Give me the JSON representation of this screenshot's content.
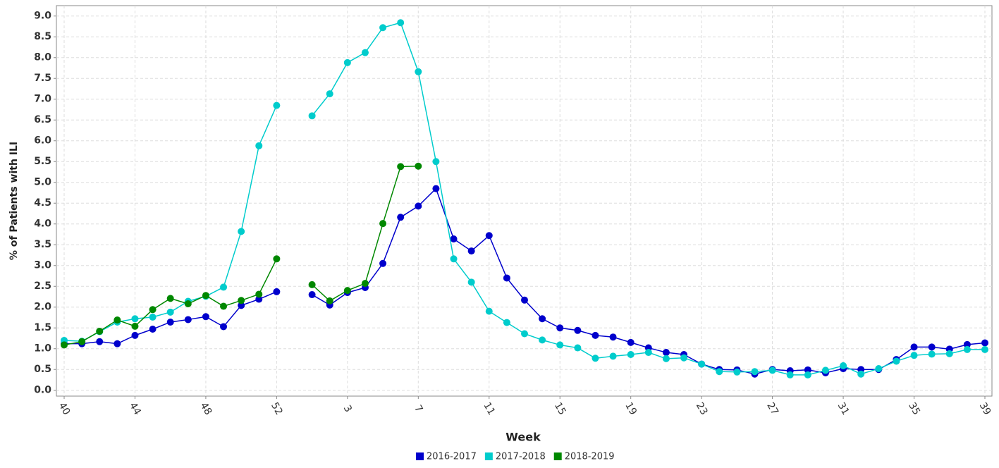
{
  "chart_data": {
    "type": "line",
    "x_label": "Week",
    "y_label": "% of Patients with ILI",
    "categories": [
      "40",
      null,
      null,
      null,
      "44",
      null,
      null,
      null,
      "48",
      null,
      null,
      null,
      "52",
      null,
      null,
      null,
      "3",
      null,
      null,
      null,
      "7",
      null,
      null,
      null,
      "11",
      null,
      null,
      null,
      "15",
      null,
      null,
      null,
      "19",
      null,
      null,
      null,
      "23",
      null,
      null,
      null,
      "27",
      null,
      null,
      null,
      "31",
      null,
      null,
      null,
      "35",
      null,
      null,
      null,
      "39"
    ],
    "series": [
      {
        "name": "2016-2017",
        "color": "#0000cc",
        "values": [
          1.12,
          1.12,
          1.17,
          1.12,
          1.32,
          1.47,
          1.64,
          1.7,
          1.77,
          1.53,
          2.04,
          2.19,
          2.37,
          null,
          2.3,
          2.05,
          2.35,
          2.47,
          3.05,
          4.16,
          4.43,
          4.85,
          3.64,
          3.35,
          3.72,
          2.7,
          2.17,
          1.72,
          1.5,
          1.44,
          1.32,
          1.28,
          1.15,
          1.02,
          0.91,
          0.86,
          0.63,
          0.5,
          0.49,
          0.39,
          0.5,
          0.47,
          0.49,
          0.42,
          0.52,
          0.5,
          0.5,
          0.74,
          1.04,
          1.04,
          0.99,
          1.1,
          1.14
        ]
      },
      {
        "name": "2017-2018",
        "color": "#00cccc",
        "values": [
          1.2,
          1.18,
          1.41,
          1.64,
          1.72,
          1.76,
          1.88,
          2.14,
          2.26,
          2.48,
          3.82,
          5.88,
          6.85,
          null,
          6.6,
          7.13,
          7.88,
          8.12,
          8.72,
          8.84,
          7.66,
          5.5,
          3.16,
          2.6,
          1.9,
          1.63,
          1.36,
          1.21,
          1.09,
          1.02,
          0.77,
          0.82,
          0.86,
          0.91,
          0.76,
          0.78,
          0.63,
          0.45,
          0.44,
          0.45,
          0.48,
          0.37,
          0.37,
          0.48,
          0.59,
          0.39,
          0.52,
          0.7,
          0.84,
          0.87,
          0.88,
          0.98,
          0.98
        ]
      },
      {
        "name": "2018-2019",
        "color": "#008800",
        "values": [
          1.09,
          1.17,
          1.42,
          1.69,
          1.54,
          1.94,
          2.21,
          2.08,
          2.28,
          2.02,
          2.16,
          2.31,
          3.16,
          null,
          2.54,
          2.15,
          2.4,
          2.57,
          4.01,
          5.38,
          5.39,
          null,
          null,
          null,
          null,
          null,
          null,
          null,
          null,
          null,
          null,
          null,
          null,
          null,
          null,
          null,
          null,
          null,
          null,
          null,
          null,
          null,
          null,
          null,
          null,
          null,
          null,
          null,
          null,
          null,
          null,
          null,
          null
        ]
      }
    ],
    "ylim": [
      -0.14,
      9.25
    ],
    "yticks": [
      {
        "value": 0,
        "label": "0.0"
      },
      {
        "value": 0.5,
        "label": "0.5"
      },
      {
        "value": 1,
        "label": "1.0"
      },
      {
        "value": 1.5,
        "label": "1.5"
      },
      {
        "value": 2,
        "label": "2.0"
      },
      {
        "value": 2.5,
        "label": "2.5"
      },
      {
        "value": 3,
        "label": "3.0"
      },
      {
        "value": 3.5,
        "label": "3.5"
      },
      {
        "value": 4,
        "label": "4.0"
      },
      {
        "value": 4.5,
        "label": "4.5"
      },
      {
        "value": 5,
        "label": "5.0"
      },
      {
        "value": 5.5,
        "label": "5.5"
      },
      {
        "value": 6,
        "label": "6.0"
      },
      {
        "value": 6.5,
        "label": "6.5"
      },
      {
        "value": 7,
        "label": "7.0"
      },
      {
        "value": 7.5,
        "label": "7.5"
      },
      {
        "value": 8,
        "label": "8.0"
      },
      {
        "value": 8.5,
        "label": "8.5"
      },
      {
        "value": 9,
        "label": "9.0"
      }
    ],
    "grid": true
  }
}
